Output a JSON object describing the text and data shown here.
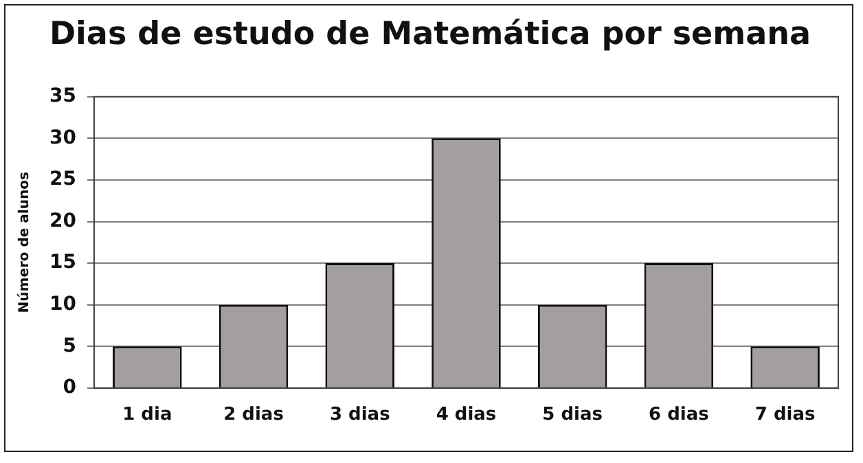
{
  "chart_data": {
    "type": "bar",
    "title": "Dias de estudo de Matemática por semana",
    "ylabel": "Número de alunos",
    "categories": [
      "1 dia",
      "2 dias",
      "3 dias",
      "4 dias",
      "5 dias",
      "6 dias",
      "7 dias"
    ],
    "values": [
      5,
      10,
      15,
      30,
      10,
      15,
      5
    ],
    "color": "#a49ea2",
    "ylim": [
      0,
      35
    ],
    "yticks": [
      0,
      5,
      10,
      15,
      20,
      25,
      30,
      35
    ],
    "grid": "y",
    "legend": false
  }
}
